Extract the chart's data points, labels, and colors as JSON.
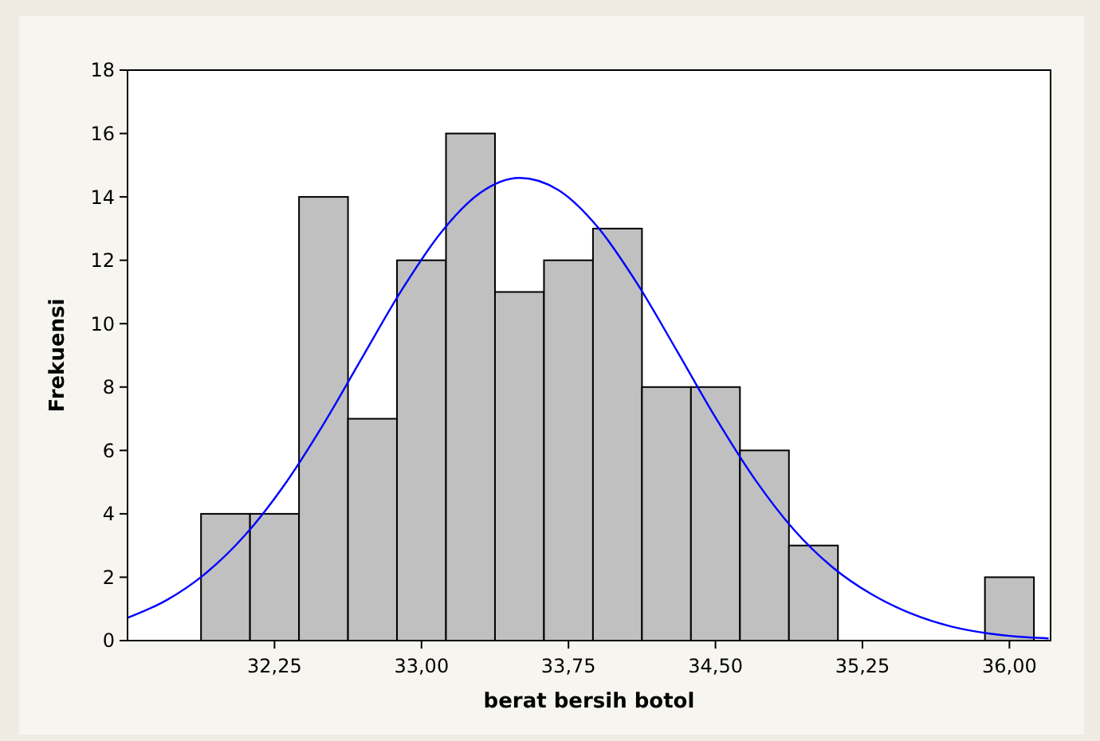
{
  "chart_data": {
    "type": "histogram",
    "xlabel": "berat bersih botol",
    "ylabel": "Frekuensi",
    "bins": [
      31.875,
      32.125,
      32.375,
      32.625,
      32.875,
      33.125,
      33.375,
      33.625,
      33.875,
      34.125,
      34.375,
      34.625,
      34.875,
      35.125,
      35.375,
      35.625,
      35.875,
      36.125
    ],
    "values": [
      4,
      4,
      14,
      7,
      12,
      16,
      11,
      12,
      13,
      8,
      8,
      6,
      3,
      0,
      0,
      0,
      2
    ],
    "color": "#c0c0c0",
    "series": [
      {
        "type": "line",
        "color": "#0000ff",
        "x": [
          31.5,
          31.7,
          31.9,
          32.1,
          32.3,
          32.5,
          32.7,
          32.9,
          33.1,
          33.3,
          33.5,
          33.7,
          33.9,
          34.1,
          34.3,
          34.5,
          34.7,
          34.9,
          35.1,
          35.3,
          35.5,
          35.7,
          35.9,
          36.1,
          36.2
        ],
        "values": [
          0.72,
          1.28,
          2.13,
          3.33,
          4.91,
          6.83,
          8.96,
          11.07,
          12.88,
          14.13,
          14.6,
          14.21,
          13.04,
          11.27,
          9.18,
          7.04,
          5.1,
          3.5,
          2.3,
          1.45,
          0.85,
          0.45,
          0.22,
          0.1,
          0.07
        ]
      }
    ],
    "xlim": [
      31.5,
      36.21
    ],
    "ylim": [
      0,
      18
    ],
    "xticks": [
      {
        "value": 32.25,
        "label": "32,25"
      },
      {
        "value": 33,
        "label": "33,00"
      },
      {
        "value": 33.75,
        "label": "33,75"
      },
      {
        "value": 34.5,
        "label": "34,50"
      },
      {
        "value": 35.25,
        "label": "35,25"
      },
      {
        "value": 36,
        "label": "36,00"
      }
    ],
    "yticks": [
      0,
      2,
      4,
      6,
      8,
      10,
      12,
      14,
      16,
      18
    ],
    "tick_labels": "xy"
  }
}
